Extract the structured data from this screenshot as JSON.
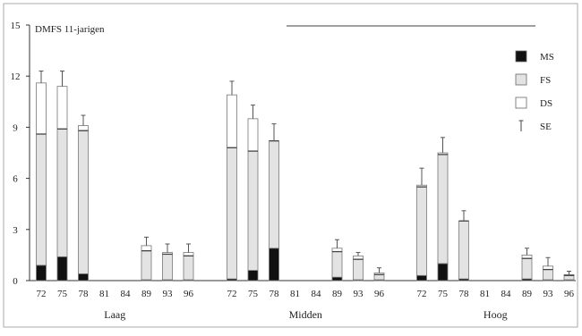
{
  "chart_data": {
    "type": "bar",
    "title": "DMFS 11-jarigen",
    "ylim": [
      0,
      15
    ],
    "yticks": [
      "0",
      "3",
      "6",
      "9",
      "12",
      "15"
    ],
    "groups": [
      "Laag",
      "Midden",
      "Hoog"
    ],
    "categories": [
      "72",
      "75",
      "78",
      "81",
      "84",
      "89",
      "93",
      "96"
    ],
    "legend": [
      {
        "key": "MS",
        "label": "MS",
        "color": "#111111"
      },
      {
        "key": "FS",
        "label": "FS",
        "color": "#e3e3e3"
      },
      {
        "key": "DS",
        "label": "DS",
        "color": "#ffffff"
      },
      {
        "key": "SE",
        "label": "SE"
      }
    ],
    "series": [
      {
        "name": "MS",
        "stacked": true,
        "values": [
          [
            0.9,
            1.4,
            0.4,
            null,
            null,
            0.05,
            0.05,
            0.05
          ],
          [
            0.1,
            0.6,
            1.9,
            null,
            null,
            0.2,
            0.05,
            0.05
          ],
          [
            0.3,
            1.0,
            0.1,
            null,
            null,
            0.1,
            0.05,
            0.05
          ]
        ]
      },
      {
        "name": "FS",
        "stacked": true,
        "values": [
          [
            7.7,
            7.5,
            8.4,
            null,
            null,
            1.7,
            1.5,
            1.4
          ],
          [
            7.7,
            7.0,
            6.3,
            null,
            null,
            1.5,
            1.2,
            0.3
          ],
          [
            5.2,
            6.4,
            3.4,
            null,
            null,
            1.2,
            0.6,
            0.25
          ]
        ]
      },
      {
        "name": "DS",
        "stacked": true,
        "values": [
          [
            3.0,
            2.5,
            0.3,
            null,
            null,
            0.3,
            0.1,
            0.2
          ],
          [
            3.1,
            1.9,
            0.0,
            null,
            null,
            0.2,
            0.2,
            0.1
          ],
          [
            0.1,
            0.1,
            0.0,
            null,
            null,
            0.2,
            0.2,
            0.05
          ]
        ]
      },
      {
        "name": "SE",
        "errorbar": true,
        "values": [
          [
            0.7,
            0.9,
            0.6,
            null,
            null,
            0.5,
            0.5,
            0.5
          ],
          [
            0.8,
            0.8,
            1.0,
            null,
            null,
            0.5,
            0.2,
            0.3
          ],
          [
            1.0,
            0.9,
            0.6,
            null,
            null,
            0.4,
            0.5,
            0.2
          ]
        ]
      }
    ]
  }
}
